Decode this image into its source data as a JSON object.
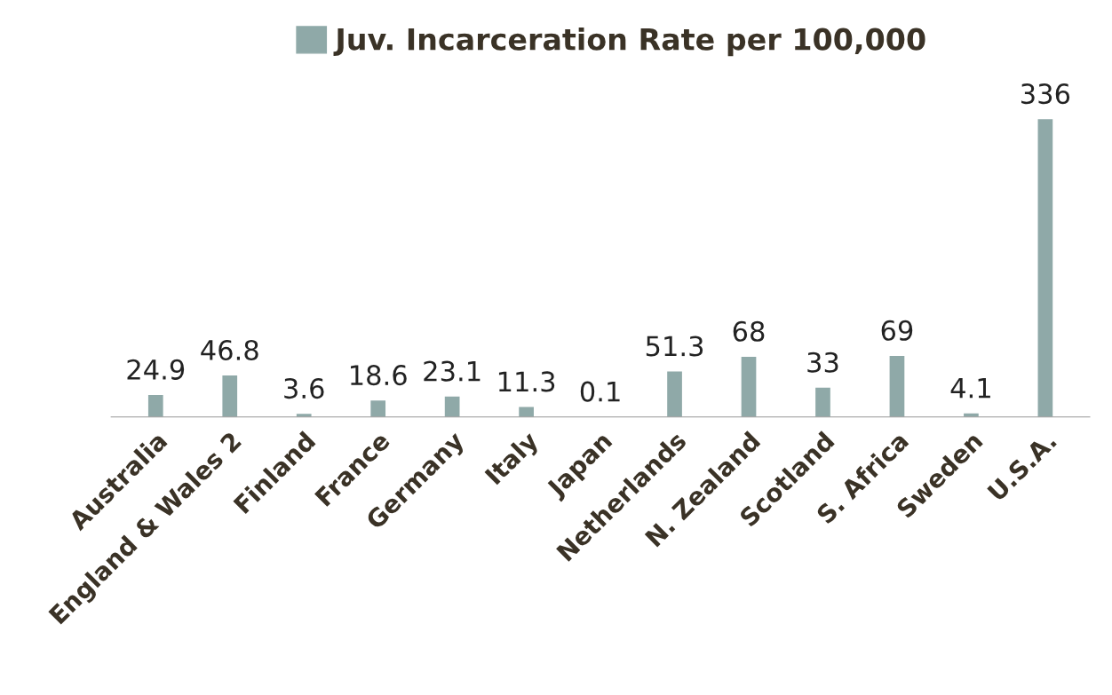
{
  "chart_data": {
    "type": "bar",
    "categories": [
      "Australia",
      "England & Wales 2",
      "Finland",
      "France",
      "Germany",
      "Italy",
      "Japan",
      "Netherlands",
      "N. Zealand",
      "Scotland",
      "S. Africa",
      "Sweden",
      "U.S.A."
    ],
    "series": [
      {
        "name": "Juv. Incarceration Rate per 100,000",
        "color": "#8fa9a8",
        "values": [
          24.9,
          46.8,
          3.6,
          18.6,
          23.1,
          11.3,
          0.1,
          51.3,
          68,
          33,
          69,
          4.1,
          336
        ]
      }
    ],
    "data_labels": true,
    "legend": "top",
    "grid": false
  }
}
